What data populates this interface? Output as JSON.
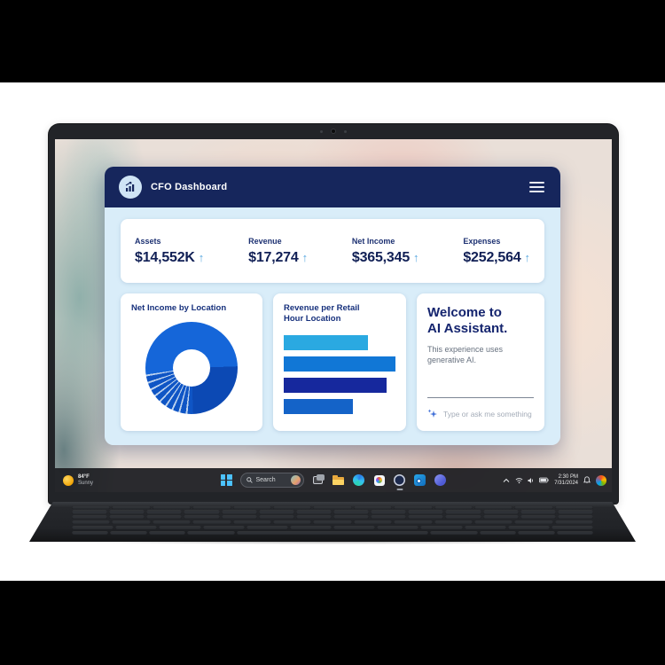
{
  "app": {
    "title": "CFO Dashboard",
    "trend_arrow": "↑",
    "kpis": [
      {
        "label": "Assets",
        "value": "$14,552K"
      },
      {
        "label": "Revenue",
        "value": "$17,274"
      },
      {
        "label": "Net Income",
        "value": "$365,345"
      },
      {
        "label": "Expenses",
        "value": "$252,564"
      }
    ],
    "ai_card": {
      "title_line1": "Welcome to",
      "title_line2": "AI Assistant.",
      "subtitle": "This experience uses generative AI.",
      "input_placeholder": "Type or ask me something"
    },
    "colors": {
      "header_navy": "#16265c",
      "body_light_blue": "#d9edf9",
      "text_navy": "#16307c",
      "trend_arrow_blue": "#5aa9e0"
    }
  },
  "chart_data": [
    {
      "type": "pie",
      "style": "donut",
      "title": "Net Income by Location",
      "legend_position": "none",
      "note": "no numeric labels shown; segment sizes estimated from arc angles in degrees clockwise from top",
      "segments": [
        {
          "name": "segment-bright-blue-a",
          "color": "#1566d9",
          "deg": 88
        },
        {
          "name": "segment-dark-blue",
          "color": "#0c49b4",
          "deg": 90
        },
        {
          "name": "sliver",
          "color": "#0f55c5",
          "deg": 7
        },
        {
          "name": "gap",
          "color": "#bcd2ee",
          "deg": 2.3
        },
        {
          "name": "sliver",
          "color": "#0f55c5",
          "deg": 7
        },
        {
          "name": "gap",
          "color": "#bcd2ee",
          "deg": 2.3
        },
        {
          "name": "sliver",
          "color": "#0f55c5",
          "deg": 7
        },
        {
          "name": "gap",
          "color": "#bcd2ee",
          "deg": 2.3
        },
        {
          "name": "sliver",
          "color": "#0f55c5",
          "deg": 7
        },
        {
          "name": "gap",
          "color": "#bcd2ee",
          "deg": 2.3
        },
        {
          "name": "sliver",
          "color": "#0f55c5",
          "deg": 7
        },
        {
          "name": "gap",
          "color": "#bcd2ee",
          "deg": 2.3
        },
        {
          "name": "sliver",
          "color": "#0f55c5",
          "deg": 7
        },
        {
          "name": "gap",
          "color": "#bcd2ee",
          "deg": 2.3
        },
        {
          "name": "sliver",
          "color": "#0f55c5",
          "deg": 7
        },
        {
          "name": "gap",
          "color": "#bcd2ee",
          "deg": 2.3
        },
        {
          "name": "sliver",
          "color": "#0f55c5",
          "deg": 7
        },
        {
          "name": "gap",
          "color": "#bcd2ee",
          "deg": 2.3
        },
        {
          "name": "sliver",
          "color": "#0f55c5",
          "deg": 7
        },
        {
          "name": "gap",
          "color": "#bcd2ee",
          "deg": 2.3
        },
        {
          "name": "segment-bright-blue-b",
          "color": "#1566d9",
          "deg": 98.3
        }
      ]
    },
    {
      "type": "bar",
      "title": "Revenue per Retail Hour Location",
      "orientation": "horizontal",
      "categories": [
        "",
        "",
        "",
        ""
      ],
      "values_percent_of_max": [
        75,
        100,
        92,
        62
      ],
      "colors": [
        "#2aa9e1",
        "#1177d6",
        "#16289d",
        "#1463c8"
      ],
      "axis_labels": "none shown",
      "grid": false
    }
  ],
  "taskbar": {
    "weather": {
      "temp": "84°F",
      "condition": "Sunny"
    },
    "search_label": "Search",
    "clock": {
      "time": "2:30 PM",
      "date": "7/31/2024"
    },
    "center_icons": [
      "start",
      "search",
      "task-view",
      "file-explorer",
      "edge",
      "photos",
      "cfo-app-active",
      "outlook",
      "teams"
    ],
    "tray_icons": [
      "hidden-icons-chevron",
      "wifi",
      "volume",
      "battery",
      "clock",
      "notifications-bell",
      "copilot"
    ]
  }
}
